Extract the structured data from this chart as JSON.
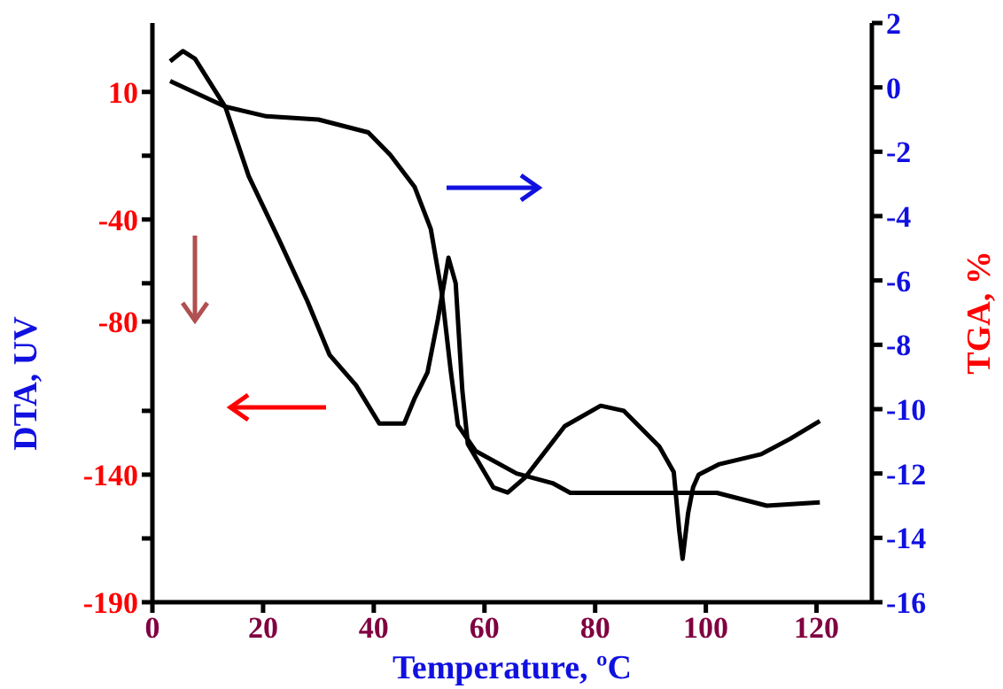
{
  "chart_data": {
    "type": "line",
    "xlabel": "Temperature, ºC",
    "ylabel": "DTA, UV",
    "y2label": "TGA, %",
    "xlim": [
      0,
      130
    ],
    "xticks": [
      0,
      20,
      40,
      60,
      80,
      100,
      120
    ],
    "ylim": [
      -190,
      37
    ],
    "yticks": [
      10,
      {
        "value": -15,
        "label": null
      },
      -40,
      {
        "value": -65,
        "label": null
      },
      -80,
      {
        "value": -115,
        "label": null
      },
      -140,
      {
        "value": -165,
        "label": null
      },
      -190
    ],
    "y2lim": [
      -16,
      2
    ],
    "y2ticks": [
      2,
      0,
      -2,
      -4,
      -6,
      -8,
      -10,
      -12,
      -14,
      -16
    ],
    "marker": "none",
    "line_style": "solid",
    "series": [
      {
        "color": "#000000",
        "axis": "y",
        "x": [
          3.2,
          5.5,
          7.7,
          13.2,
          17.4,
          22.9,
          28,
          32,
          36.8,
          41,
          45.5,
          47.4,
          49.7,
          51.6,
          53.5,
          54.8,
          56,
          57,
          61.6,
          64.2,
          67.4,
          74.5,
          81,
          85.2,
          91.6,
          94.2,
          95.2,
          95.8,
          96.8,
          97.7,
          98.7,
          102.3,
          110,
          115.2,
          120.6
        ],
        "values": [
          22,
          26,
          23,
          4,
          -23,
          -48,
          -72,
          -93,
          -105,
          -120,
          -120,
          -110,
          -100,
          -79,
          -55,
          -65,
          -107,
          -128,
          -145,
          -147,
          -141,
          -121,
          -113,
          -115,
          -129,
          -139,
          -162,
          -173,
          -155,
          -145,
          -140,
          -136,
          -132,
          -126,
          -119
        ]
      },
      {
        "color": "#000000",
        "axis": "y2",
        "x": [
          3.2,
          13.2,
          20.6,
          30,
          39,
          43,
          47.4,
          50.3,
          52.3,
          53.9,
          55.2,
          58.4,
          65.8,
          72.3,
          75.5,
          102,
          111,
          120.6
        ],
        "values": [
          0.2,
          -0.6,
          -0.9,
          -1.0,
          -1.4,
          -2.1,
          -3.1,
          -4.4,
          -6.4,
          -8.8,
          -10.5,
          -11.3,
          -12.0,
          -12.3,
          -12.6,
          -12.6,
          -13.0,
          -12.9
        ]
      }
    ]
  }
}
